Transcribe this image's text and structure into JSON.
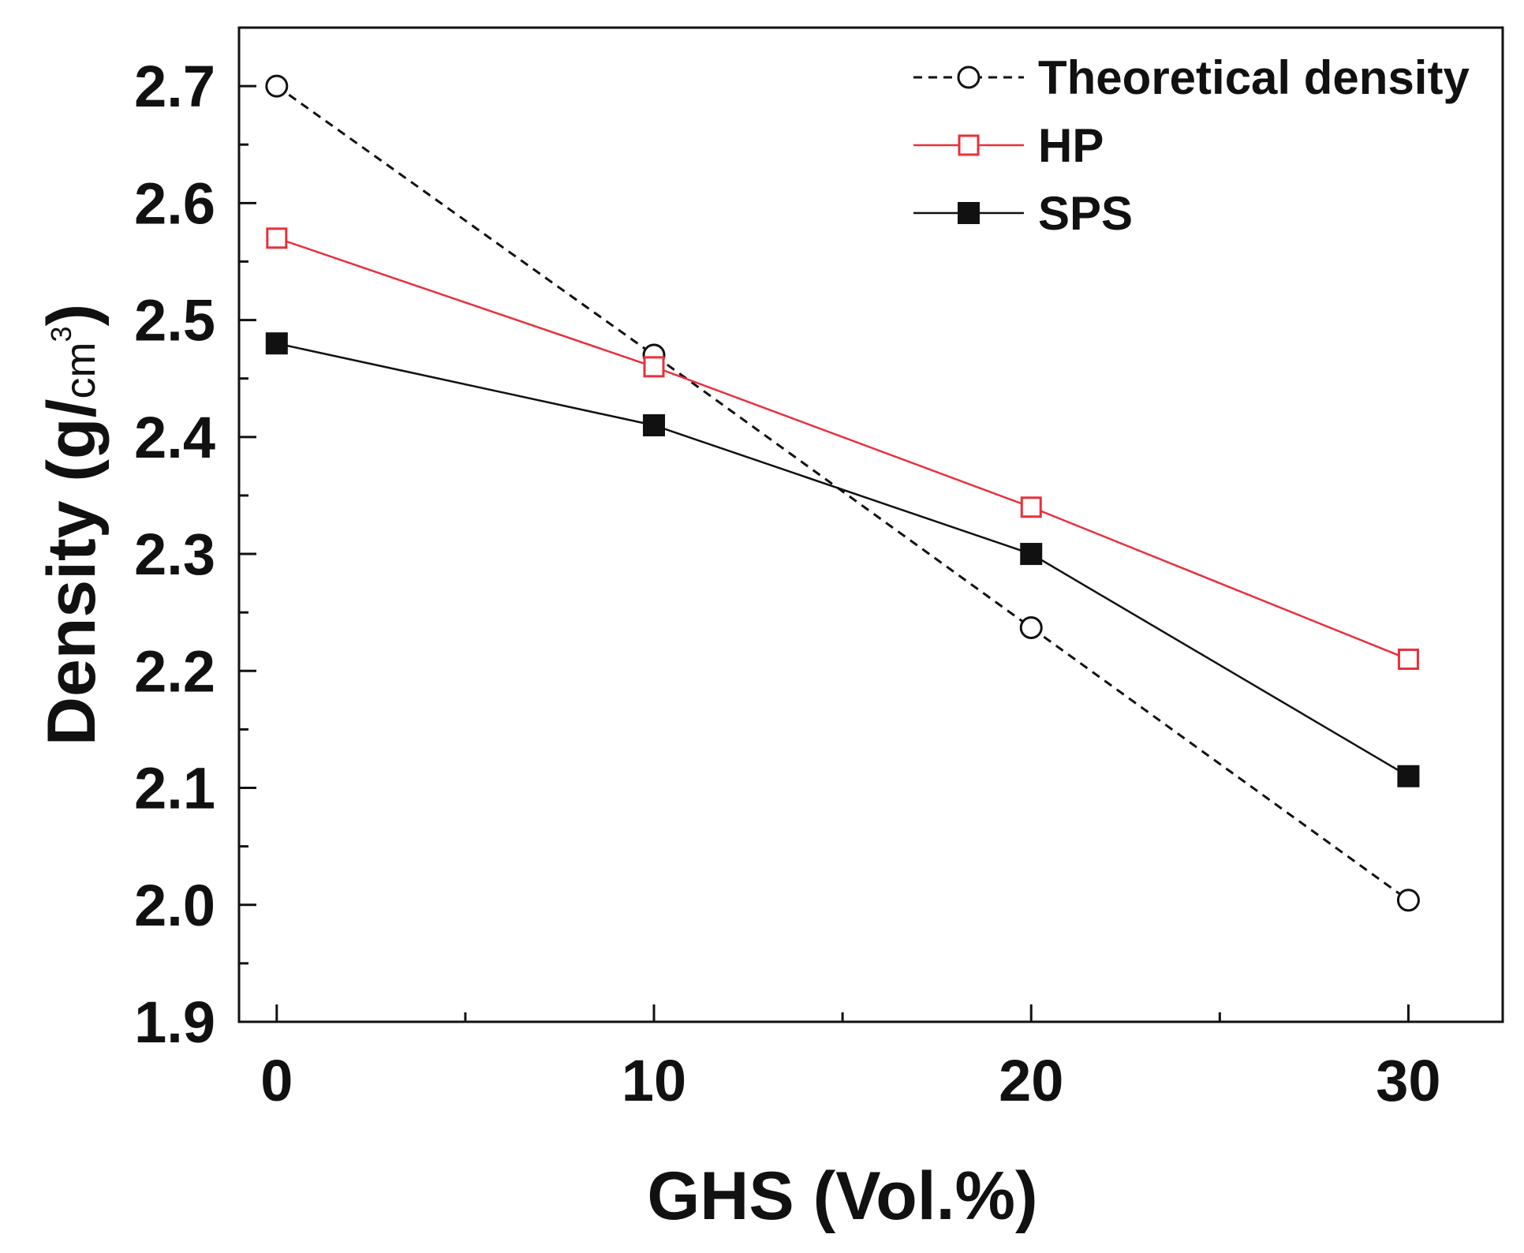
{
  "chart_data": {
    "type": "line",
    "title": "",
    "xlabel": "GHS (Vol.%)",
    "ylabel_main": "Density (g/",
    "ylabel_unit": "cm",
    "ylabel_sup": "3",
    "ylabel_close": ")",
    "x": [
      0,
      10,
      20,
      30
    ],
    "xlim": [
      -1,
      32.5
    ],
    "ylim": [
      1.9,
      2.75
    ],
    "xticks": [
      0,
      10,
      20,
      30
    ],
    "xtick_labels": [
      "0",
      "10",
      "20",
      "30"
    ],
    "xminor_ticks": [
      5,
      15,
      25
    ],
    "yticks": [
      1.9,
      2.0,
      2.1,
      2.2,
      2.3,
      2.4,
      2.5,
      2.6,
      2.7
    ],
    "ytick_labels": [
      "1.9",
      "2.0",
      "2.1",
      "2.2",
      "2.3",
      "2.4",
      "2.5",
      "2.6",
      "2.7"
    ],
    "yminor_ticks": [
      1.95,
      2.05,
      2.15,
      2.25,
      2.35,
      2.45,
      2.55,
      2.65
    ],
    "grid": false,
    "legend_position": "top-right",
    "series": [
      {
        "name": "Theoretical density",
        "key": "theoretical",
        "values": [
          2.7,
          2.47,
          2.237,
          2.004
        ],
        "color": "#111111",
        "dashed": true,
        "marker": "open-circle"
      },
      {
        "name": "HP",
        "key": "hp",
        "values": [
          2.57,
          2.46,
          2.34,
          2.21
        ],
        "color": "#e8303a",
        "dashed": false,
        "marker": "open-square"
      },
      {
        "name": "SPS",
        "key": "sps",
        "values": [
          2.48,
          2.41,
          2.3,
          2.11
        ],
        "color": "#111111",
        "dashed": false,
        "marker": "filled-square"
      }
    ]
  }
}
